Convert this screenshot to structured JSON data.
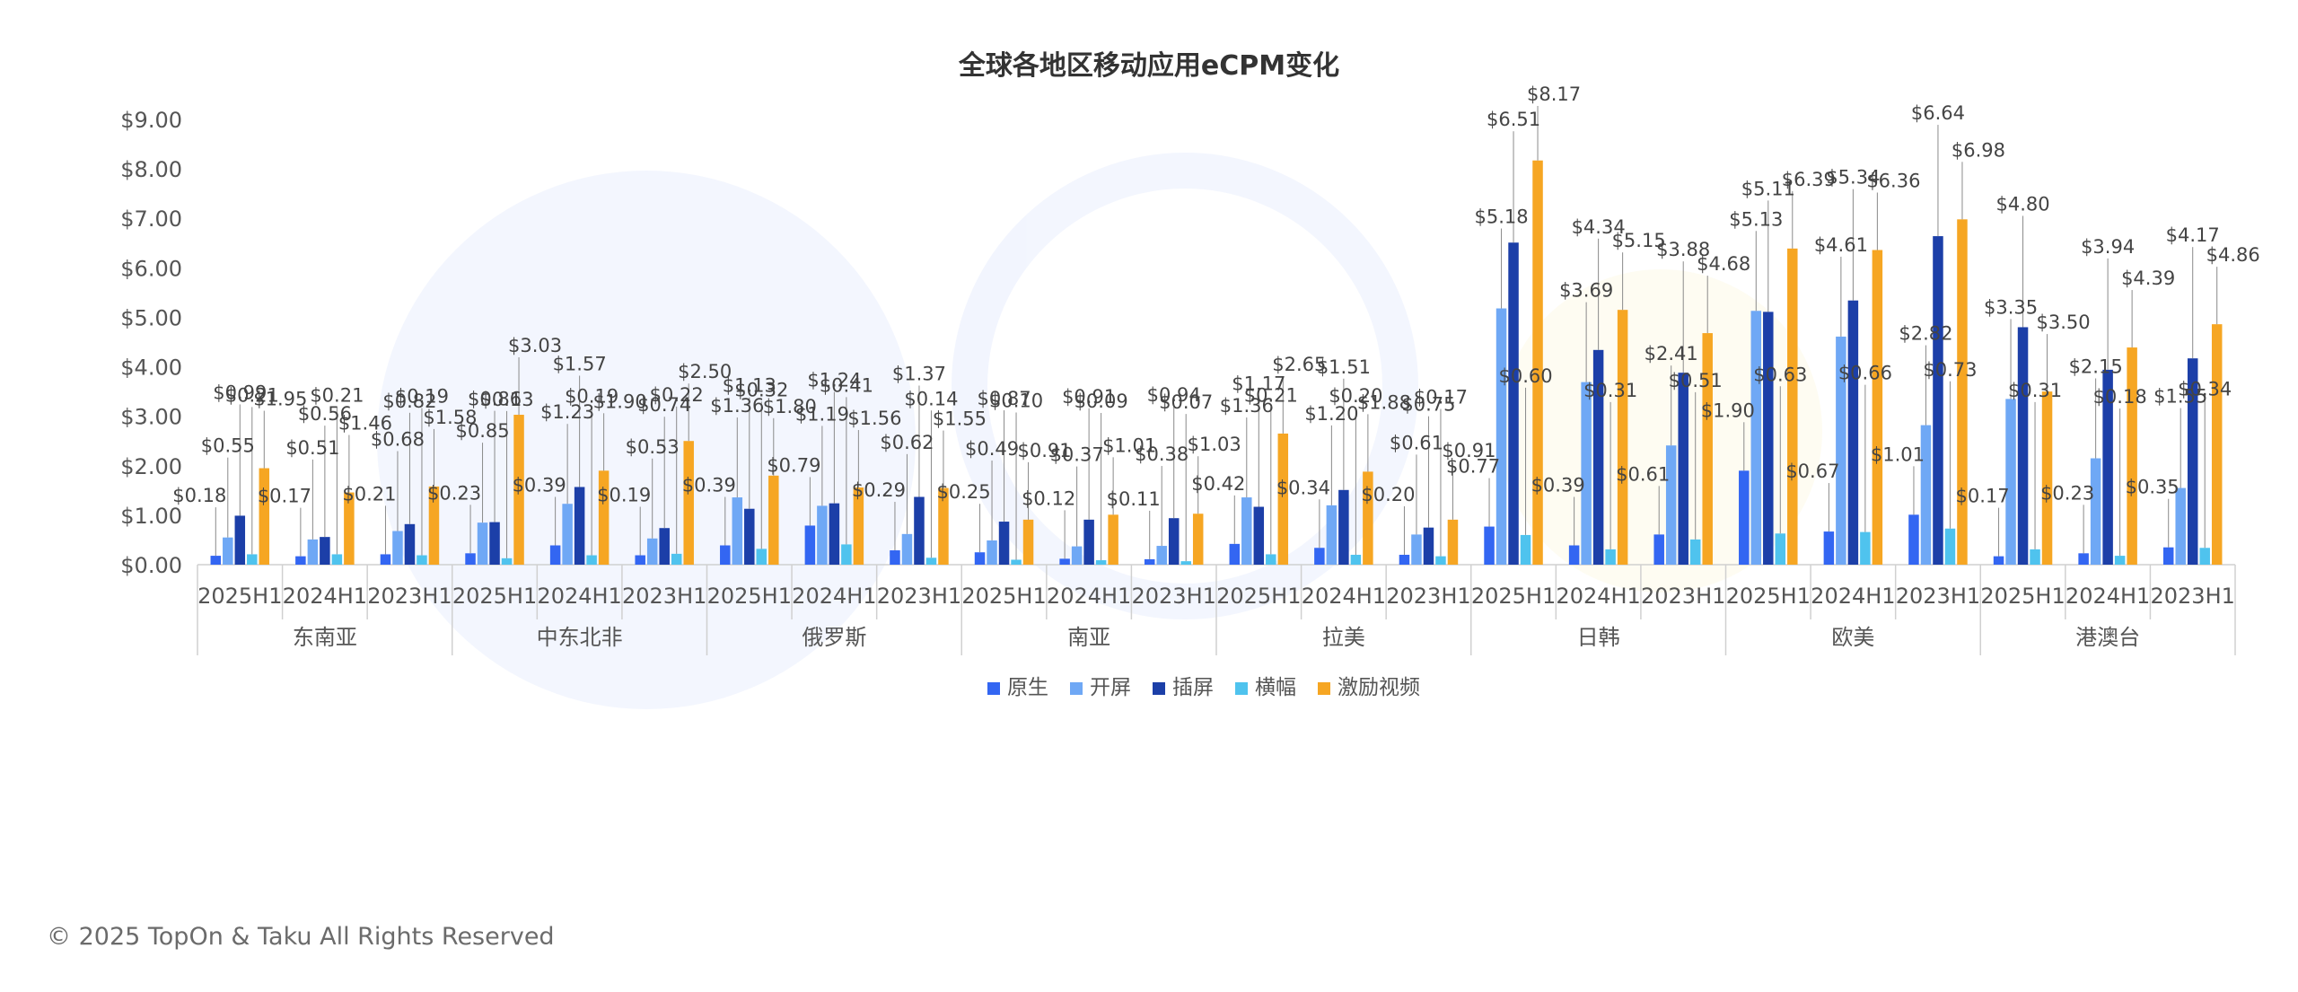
{
  "footer": "© 2025 TopOn & Taku All Rights Reserved",
  "chart_data": {
    "type": "bar",
    "title": "全球各地区移动应用eCPM变化",
    "xlabel": "",
    "ylabel": "",
    "ylim": [
      0,
      9
    ],
    "yticks": [
      "$0.00",
      "$1.00",
      "$2.00",
      "$3.00",
      "$4.00",
      "$5.00",
      "$6.00",
      "$7.00",
      "$8.00",
      "$9.00"
    ],
    "grid": false,
    "legend_position": "bottom",
    "regions": [
      "东南亚",
      "中东北非",
      "俄罗斯",
      "南亚",
      "拉美",
      "日韩",
      "欧美",
      "港澳台"
    ],
    "periods": [
      "2025H1",
      "2024H1",
      "2023H1"
    ],
    "series": [
      {
        "name": "原生",
        "color": "#3366f2",
        "values": [
          0.18,
          0.17,
          0.21,
          0.23,
          0.39,
          0.19,
          0.39,
          0.79,
          0.29,
          0.25,
          0.12,
          0.11,
          0.42,
          0.34,
          0.2,
          0.77,
          0.39,
          0.61,
          1.9,
          0.67,
          1.01,
          0.17,
          0.23,
          0.35
        ],
        "labels": [
          "$0.18",
          "$0.17",
          "$0.21",
          "$0.23",
          "$0.39",
          "$0.19",
          "$0.39",
          "$0.79",
          "$0.29",
          "$0.25",
          "$0.12",
          "$0.11",
          "$0.42",
          "$0.34",
          "$0.20",
          "$0.77",
          "$0.39",
          "$0.61",
          "$1.90",
          "$0.67",
          "$1.01",
          "$0.17",
          "$0.23",
          "$0.35"
        ]
      },
      {
        "name": "开屏",
        "color": "#6fa8f5",
        "values": [
          0.55,
          0.51,
          0.68,
          0.85,
          1.23,
          0.53,
          1.36,
          1.19,
          0.62,
          0.49,
          0.37,
          0.38,
          1.36,
          1.2,
          0.61,
          5.18,
          3.69,
          2.41,
          5.13,
          4.61,
          2.82,
          3.35,
          2.15,
          1.55
        ],
        "labels": [
          "$0.55",
          "$0.51",
          "$0.68",
          "$0.85",
          "$1.23",
          "$0.53",
          "$1.36",
          "$1.19",
          "$0.62",
          "$0.49",
          "$0.37",
          "$0.38",
          "$1.36",
          "$1.20",
          "$0.61",
          "$5.18",
          "$3.69",
          "$2.41",
          "$5.13",
          "$4.61",
          "$2.82",
          "$3.35",
          "$2.15",
          "$1.55"
        ]
      },
      {
        "name": "插屏",
        "color": "#1c3fa8",
        "values": [
          0.99,
          0.56,
          0.82,
          0.86,
          1.57,
          0.74,
          1.13,
          1.24,
          1.37,
          0.87,
          0.91,
          0.94,
          1.17,
          1.51,
          0.75,
          6.51,
          4.34,
          3.88,
          5.11,
          5.34,
          6.64,
          4.8,
          3.94,
          4.17
        ],
        "labels": [
          "$0.99",
          "$0.56",
          "$0.82",
          "$0.86",
          "$1.57",
          "$0.74",
          "$1.13",
          "$1.24",
          "$1.37",
          "$0.87",
          "$0.91",
          "$0.94",
          "$1.17",
          "$1.51",
          "$0.75",
          "$6.51",
          "$4.34",
          "$3.88",
          "$5.11",
          "$5.34",
          "$6.64",
          "$4.80",
          "$3.94",
          "$4.17"
        ]
      },
      {
        "name": "横幅",
        "color": "#4fc3ee",
        "values": [
          0.21,
          0.21,
          0.19,
          0.13,
          0.19,
          0.22,
          0.32,
          0.41,
          0.14,
          0.1,
          0.09,
          0.07,
          0.21,
          0.2,
          0.17,
          0.6,
          0.31,
          0.51,
          0.63,
          0.66,
          0.73,
          0.31,
          0.18,
          0.34
        ],
        "labels": [
          "$0.21",
          "$0.21",
          "$0.19",
          "$0.13",
          "$0.19",
          "$0.22",
          "$0.32",
          "$0.41",
          "$0.14",
          "$0.10",
          "$0.09",
          "$0.07",
          "$0.21",
          "$0.20",
          "$0.17",
          "$0.60",
          "$0.31",
          "$0.51",
          "$0.63",
          "$0.66",
          "$0.73",
          "$0.31",
          "$0.18",
          "$0.34"
        ]
      },
      {
        "name": "激励视频",
        "color": "#f6a623",
        "values": [
          1.95,
          1.46,
          1.58,
          3.03,
          1.9,
          2.5,
          1.8,
          1.56,
          1.55,
          0.91,
          1.01,
          1.03,
          2.65,
          1.88,
          0.91,
          8.17,
          5.15,
          4.68,
          6.39,
          6.36,
          6.98,
          3.5,
          4.39,
          4.86
        ],
        "labels": [
          "$1.95",
          "$1.46",
          "$1.58",
          "$3.03",
          "$1.90",
          "$2.50",
          "$1.80",
          "$1.56",
          "$1.55",
          "$0.91",
          "$1.01",
          "$1.03",
          "$2.65",
          "$1.88",
          "$0.91",
          "$8.17",
          "$5.15",
          "$4.68",
          "$6.39",
          "$6.36",
          "$6.98",
          "$3.50",
          "$4.39",
          "$4.86"
        ]
      }
    ]
  }
}
